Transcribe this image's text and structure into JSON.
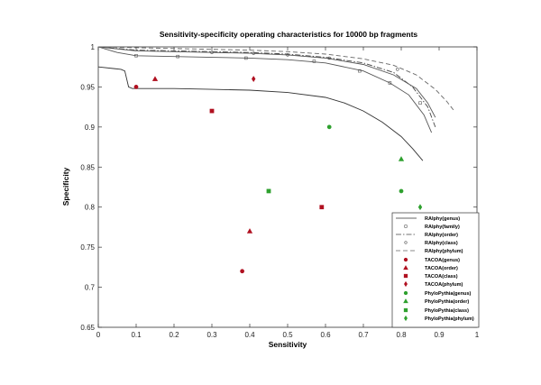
{
  "chart_data": {
    "type": "scatter",
    "title": "Sensitivity-specificity operating characteristics for 10000 bp fragments",
    "xlabel": "Sensitivity",
    "ylabel": "Specificity",
    "xlim": [
      0,
      1
    ],
    "ylim": [
      0.65,
      1
    ],
    "xticks": [
      "0",
      "0.1",
      "0.2",
      "0.3",
      "0.4",
      "0.5",
      "0.6",
      "0.7",
      "0.8",
      "0.9",
      "1"
    ],
    "yticks": [
      "0.65",
      "0.7",
      "0.75",
      "0.8",
      "0.85",
      "0.9",
      "0.95",
      "1"
    ],
    "grid": false,
    "legend_position": "lower right",
    "series": [
      {
        "name": "RAIphy(genus)",
        "kind": "line",
        "style": "solid",
        "color": "#333333",
        "points": [
          [
            0,
            0.975
          ],
          [
            0.06,
            0.972
          ],
          [
            0.07,
            0.97
          ],
          [
            0.08,
            0.95
          ],
          [
            0.09,
            0.948
          ],
          [
            0.2,
            0.948
          ],
          [
            0.3,
            0.947
          ],
          [
            0.4,
            0.946
          ],
          [
            0.5,
            0.943
          ],
          [
            0.6,
            0.937
          ],
          [
            0.65,
            0.93
          ],
          [
            0.7,
            0.92
          ],
          [
            0.75,
            0.906
          ],
          [
            0.8,
            0.888
          ],
          [
            0.83,
            0.873
          ],
          [
            0.857,
            0.858
          ]
        ]
      },
      {
        "name": "RAIphy(family)",
        "kind": "line",
        "style": "solid-square",
        "color": "#555555",
        "points": [
          [
            0,
            1
          ],
          [
            0.05,
            0.993
          ],
          [
            0.1,
            0.989
          ],
          [
            0.2,
            0.988
          ],
          [
            0.3,
            0.987
          ],
          [
            0.4,
            0.986
          ],
          [
            0.5,
            0.984
          ],
          [
            0.6,
            0.98
          ],
          [
            0.7,
            0.97
          ],
          [
            0.77,
            0.955
          ],
          [
            0.82,
            0.94
          ],
          [
            0.86,
            0.915
          ],
          [
            0.88,
            0.893
          ]
        ],
        "markers": [
          [
            0.1,
            0.989
          ],
          [
            0.21,
            0.988
          ],
          [
            0.39,
            0.986
          ],
          [
            0.57,
            0.982
          ],
          [
            0.69,
            0.97
          ],
          [
            0.77,
            0.955
          ],
          [
            0.85,
            0.93
          ]
        ]
      },
      {
        "name": "RAIphy(order)",
        "kind": "line",
        "style": "dash-dot",
        "color": "#444444",
        "points": [
          [
            0,
            1
          ],
          [
            0.1,
            0.996
          ],
          [
            0.2,
            0.995
          ],
          [
            0.3,
            0.994
          ],
          [
            0.4,
            0.993
          ],
          [
            0.5,
            0.991
          ],
          [
            0.6,
            0.987
          ],
          [
            0.7,
            0.98
          ],
          [
            0.78,
            0.968
          ],
          [
            0.83,
            0.95
          ],
          [
            0.87,
            0.925
          ],
          [
            0.89,
            0.9
          ]
        ]
      },
      {
        "name": "RAIphy(class)",
        "kind": "line",
        "style": "solid-circle",
        "color": "#555555",
        "points": [
          [
            0,
            1
          ],
          [
            0.1,
            0.995
          ],
          [
            0.2,
            0.994
          ],
          [
            0.3,
            0.993
          ],
          [
            0.4,
            0.992
          ],
          [
            0.5,
            0.99
          ],
          [
            0.6,
            0.986
          ],
          [
            0.7,
            0.978
          ],
          [
            0.78,
            0.965
          ],
          [
            0.84,
            0.948
          ],
          [
            0.87,
            0.93
          ],
          [
            0.89,
            0.912
          ]
        ],
        "markers": [
          [
            0.3,
            0.993
          ],
          [
            0.41,
            0.992
          ],
          [
            0.5,
            0.99
          ],
          [
            0.61,
            0.986
          ],
          [
            0.79,
            0.972
          ]
        ]
      },
      {
        "name": "RAIphy(phylum)",
        "kind": "line",
        "style": "dashed",
        "color": "#666666",
        "points": [
          [
            0,
            1
          ],
          [
            0.1,
            0.999
          ],
          [
            0.2,
            0.998
          ],
          [
            0.3,
            0.997
          ],
          [
            0.4,
            0.996
          ],
          [
            0.5,
            0.994
          ],
          [
            0.6,
            0.991
          ],
          [
            0.7,
            0.985
          ],
          [
            0.78,
            0.977
          ],
          [
            0.84,
            0.965
          ],
          [
            0.89,
            0.947
          ],
          [
            0.92,
            0.932
          ],
          [
            0.94,
            0.92
          ]
        ]
      },
      {
        "name": "TACOA(genus)",
        "kind": "marker",
        "marker": "circle",
        "color": "#b01020",
        "points": [
          [
            0.1,
            0.95
          ],
          [
            0.38,
            0.72
          ]
        ]
      },
      {
        "name": "TACOA(order)",
        "kind": "marker",
        "marker": "triangle",
        "color": "#b01020",
        "points": [
          [
            0.15,
            0.96
          ],
          [
            0.4,
            0.77
          ]
        ]
      },
      {
        "name": "TACOA(class)",
        "kind": "marker",
        "marker": "square",
        "color": "#b01020",
        "points": [
          [
            0.3,
            0.92
          ],
          [
            0.59,
            0.8
          ]
        ]
      },
      {
        "name": "TACOA(phylum)",
        "kind": "marker",
        "marker": "diamond",
        "color": "#b01020",
        "points": [
          [
            0.41,
            0.96
          ]
        ]
      },
      {
        "name": "PhyloPythia(genus)",
        "kind": "marker",
        "marker": "circle",
        "color": "#2ea02e",
        "points": [
          [
            0.61,
            0.9
          ],
          [
            0.8,
            0.82
          ]
        ]
      },
      {
        "name": "PhyloPythia(order)",
        "kind": "marker",
        "marker": "triangle",
        "color": "#2ea02e",
        "points": [
          [
            0.8,
            0.86
          ]
        ]
      },
      {
        "name": "PhyloPythia(class)",
        "kind": "marker",
        "marker": "square",
        "color": "#2ea02e",
        "points": [
          [
            0.45,
            0.82
          ]
        ]
      },
      {
        "name": "PhyloPythia(phylum)",
        "kind": "marker",
        "marker": "diamond",
        "color": "#2ea02e",
        "points": [
          [
            0.85,
            0.8
          ]
        ]
      }
    ]
  },
  "legend": {
    "items": [
      "RAIphy(genus)",
      "RAIphy(family)",
      "RAIphy(order)",
      "RAIphy(class)",
      "RAIphy(phylum)",
      "TACOA(genus)",
      "TACOA(order)",
      "TACOA(class)",
      "TACOA(phylum)",
      "PhyloPythia(genus)",
      "PhyloPythia(order)",
      "PhyloPythia(class)",
      "PhyloPythia(phylum)"
    ]
  }
}
